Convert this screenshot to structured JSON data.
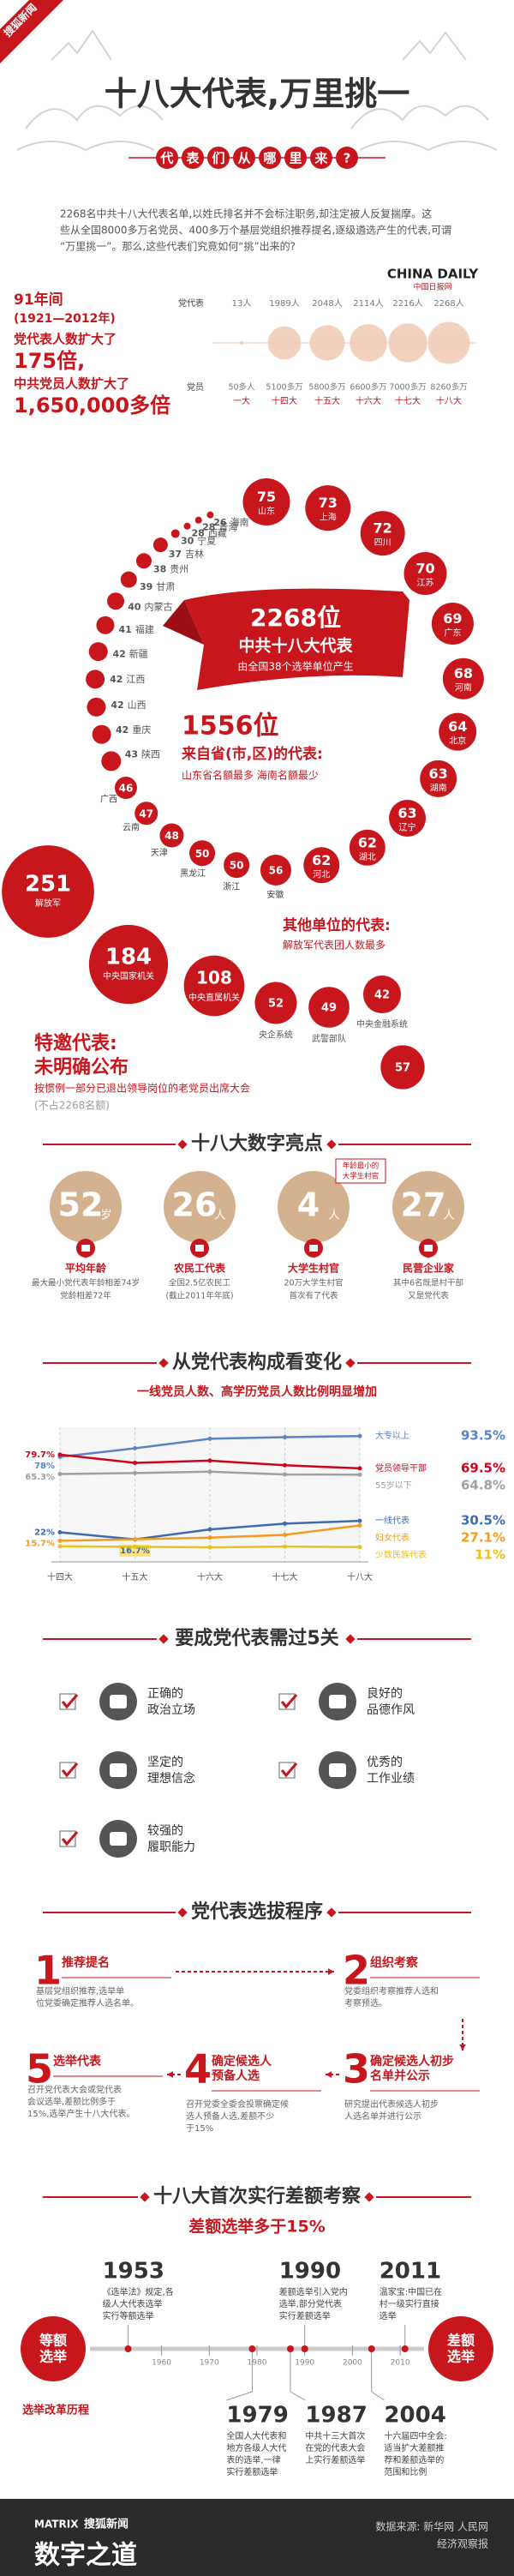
{
  "header": {
    "logo": "搜狐新闻",
    "title": "十八大代表,万里挑一",
    "subtitle_chars": [
      "代",
      "表",
      "们",
      "从",
      "哪",
      "里",
      "来",
      "?"
    ]
  },
  "intro": [
    "2268名中共十八大代表名单,以姓氏排名并不会标注职务,却注定被人反复揣摩。这",
    "些从全国8000多万名党员、400多万个基层党组织推荐提名,逐级遴选产生的代表,可谓",
    "“万里挑一”。那么,这些代表们究竟如何“挑”出来的?"
  ],
  "source_logo": {
    "name": "CHINA DAILY",
    "sub": "中国日报网"
  },
  "growth": {
    "period": "91年间",
    "years": "(1921—2012年)",
    "line1": "党代表人数扩大了",
    "delegate_factor": "175倍,",
    "line2": "中共党员人数扩大了",
    "member_factor": "1,650,000多倍"
  },
  "congress_table": {
    "delegates_label": "党代表",
    "members_label": "党员",
    "congresses": [
      "一大",
      "十四大",
      "十五大",
      "十六大",
      "十七大",
      "十八大"
    ],
    "delegates": [
      "13人",
      "1989人",
      "2048人",
      "2114人",
      "2216人",
      "2268人"
    ],
    "members": [
      {
        "value": 0.005,
        "label": "50多人"
      },
      {
        "value": 5100,
        "label": "5100多万"
      },
      {
        "value": 5800,
        "label": "5800多万"
      },
      {
        "value": 6600,
        "label": "6600多万"
      },
      {
        "value": 7000,
        "label": "7000多万"
      },
      {
        "value": 8260,
        "label": "8260多万"
      }
    ]
  },
  "provinces": [
    {
      "name": "山东",
      "value": 75
    },
    {
      "name": "上海",
      "value": 73
    },
    {
      "name": "四川",
      "value": 72
    },
    {
      "name": "江苏",
      "value": 70
    },
    {
      "name": "广东",
      "value": 69
    },
    {
      "name": "河南",
      "value": 68
    },
    {
      "name": "北京",
      "value": 64
    },
    {
      "name": "湖南",
      "value": 63
    },
    {
      "name": "辽宁",
      "value": 63
    },
    {
      "name": "湖北",
      "value": 62
    },
    {
      "name": "河北",
      "value": 62
    },
    {
      "name": "安徽",
      "value": 56
    },
    {
      "name": "浙江",
      "value": 50
    },
    {
      "name": "黑龙江",
      "value": 50
    },
    {
      "name": "天津",
      "value": 48
    },
    {
      "name": "云南",
      "value": 47
    },
    {
      "name": "广西",
      "value": 46
    },
    {
      "name": "陕西",
      "value": 43
    },
    {
      "name": "重庆",
      "value": 42
    },
    {
      "name": "山西",
      "value": 42
    },
    {
      "name": "江西",
      "value": 42
    },
    {
      "name": "新疆",
      "value": 42
    },
    {
      "name": "福建",
      "value": 41
    },
    {
      "name": "内蒙古",
      "value": 40
    },
    {
      "name": "甘肃",
      "value": 39
    },
    {
      "name": "贵州",
      "value": 38
    },
    {
      "name": "吉林",
      "value": 37
    },
    {
      "name": "宁夏",
      "value": 30
    },
    {
      "name": "西藏",
      "value": 28
    },
    {
      "name": "青海",
      "value": 28
    },
    {
      "name": "海南",
      "value": 26
    }
  ],
  "summary": {
    "total": "2268位",
    "total_desc": "中共十八大代表",
    "total_note": "由全国38个选举单位产生",
    "provincial": "1556位",
    "provincial_desc": "来自省(市,区)的代表:",
    "provincial_note": "山东省名额最多 海南名额最少",
    "others_title": "其他单位的代表:",
    "others_note": "解放军代表团人数最多"
  },
  "units": [
    {
      "name": "解放军",
      "value": 251
    },
    {
      "name": "中央国家机关",
      "value": 184
    },
    {
      "name": "中央直属机关",
      "value": 108
    },
    {
      "name": "央企系统",
      "value": 52
    },
    {
      "name": "武警部队",
      "value": 49
    },
    {
      "name": "中央金融系统",
      "value": 42
    }
  ],
  "invited": {
    "title": "特邀代表:",
    "status": "未明确公布",
    "note": "按惯例一部分已退出领导岗位的老党员出席大会",
    "excluded": "(不占2268名额)",
    "value": 57
  },
  "highlights": {
    "title": "十八大数字亮点",
    "tag": [
      "年龄最小的",
      "大学生村官"
    ],
    "items": [
      {
        "number": 52,
        "unit": "岁",
        "label": "平均年龄",
        "notes": [
          "最大最小党代表年龄相差74岁",
          "党龄相差72年"
        ]
      },
      {
        "number": 26,
        "unit": "人",
        "label": "农民工代表",
        "notes": [
          "全国2.5亿农民工",
          "(截止2011年年底)"
        ]
      },
      {
        "number": 4,
        "unit": "人",
        "label": "大学生村官",
        "notes": [
          "20万大学生村官",
          "首次有了代表"
        ]
      },
      {
        "number": 27,
        "unit": "人",
        "label": "民营企业家",
        "notes": [
          "其中6名既是村干部",
          "又是党代表"
        ]
      }
    ]
  },
  "composition": {
    "title": "从党代表构成看变化",
    "subtitle": "一线党员人数、高学历党员人数比例明显增加",
    "categories": [
      "十四大",
      "十五大",
      "十六大",
      "十七大",
      "十八大"
    ],
    "ylim": [
      0,
      100
    ],
    "series": [
      {
        "name": "大专以上",
        "color": "#5b84c4",
        "values": [
          78,
          84.4,
          91.5,
          92.7,
          93.5
        ],
        "value_labels": [
          "78%",
          null,
          null,
          null,
          "93.5%"
        ]
      },
      {
        "name": "党员领导干部",
        "color": "#d0021b",
        "values": [
          79.7,
          73.6,
          75.2,
          71.8,
          69.5
        ],
        "value_labels": [
          "79.7%",
          null,
          null,
          null,
          "69.5%"
        ]
      },
      {
        "name": "55岁以下",
        "color": "#a0a0a0",
        "values": [
          65.3,
          66,
          67,
          65,
          64.8
        ],
        "value_labels": [
          "65.3%",
          null,
          null,
          null,
          "64.8%"
        ]
      },
      {
        "name": "一线代表",
        "color": "#3d6cb0",
        "values": [
          22,
          16.7,
          24.1,
          28.4,
          30.5
        ],
        "value_labels": [
          "22%",
          "16.7%",
          null,
          null,
          "30.5%"
        ]
      },
      {
        "name": "妇女代表",
        "color": "#f29c1f",
        "values": [
          15.7,
          16.8,
          18,
          20.1,
          27.1
        ],
        "value_labels": [
          "15.7%",
          null,
          null,
          null,
          "27.1%"
        ]
      },
      {
        "name": "少数民族代表",
        "color": "#e8c21a",
        "values": [
          11.6,
          11.2,
          10.8,
          11.4,
          11
        ],
        "value_labels": [
          null,
          null,
          null,
          null,
          "11%"
        ]
      }
    ]
  },
  "criteria": {
    "title": "要成党代表需过5关",
    "items": [
      [
        "正确的",
        "政治立场"
      ],
      [
        "良好的",
        "品德作风"
      ],
      [
        "坚定的",
        "理想信念"
      ],
      [
        "优秀的",
        "工作业绩"
      ],
      [
        "较强的",
        "履职能力"
      ]
    ]
  },
  "procedure": {
    "title": "党代表选拔程序",
    "steps": [
      {
        "number": 1,
        "title_lines": [
          "推荐提名"
        ],
        "lines": [
          "基层党组织推荐,选举单",
          "位党委确定推荐人选名单。"
        ]
      },
      {
        "number": 2,
        "title_lines": [
          "组织考察"
        ],
        "lines": [
          "党委组织考察推荐人选和",
          "考察预选。"
        ]
      },
      {
        "number": 3,
        "title_lines": [
          "确定候选人初步",
          "名单并公示"
        ],
        "lines": [
          "研究提出代表候选人初步",
          "人选名单并进行公示"
        ]
      },
      {
        "number": 4,
        "title_lines": [
          "确定候选人",
          "预备人选"
        ],
        "lines": [
          "召开党委全委会投票确定候",
          "选人预备人选,差额不少",
          "于15%"
        ]
      },
      {
        "number": 5,
        "title_lines": [
          "选举代表"
        ],
        "lines": [
          "召开党代表大会或党代表",
          "会议选举,差额比例多于",
          "15%,选举产生十八大代表。"
        ]
      }
    ]
  },
  "reform": {
    "title": "十八大首次实行差额考察",
    "subtitle": "差额选举多于15%",
    "left": [
      "等额",
      "选举"
    ],
    "right": [
      "差额",
      "选举"
    ],
    "caption": "选举改革历程",
    "xlim": [
      1945,
      2015
    ],
    "xticks": [
      1960,
      1970,
      1980,
      1990,
      2000,
      2010
    ],
    "above": [
      {
        "year": 1953,
        "lines": [
          "《选举法》规定,各",
          "级人大代表选举",
          "实行等额选举"
        ]
      },
      {
        "year": 1990,
        "lines": [
          "差额选举引入党内",
          "选举,部分党代表",
          "实行差额选举"
        ]
      },
      {
        "year": 2011,
        "lines": [
          "温家宝:中国已在",
          "村一级实行直接",
          "选举"
        ]
      }
    ],
    "below": [
      {
        "year": 1979,
        "lines": [
          "全国人大代表和",
          "地方各级人大代",
          "表的选举,一律",
          "实行差额选举"
        ]
      },
      {
        "year": 1987,
        "lines": [
          "中共十三大首次",
          "在党的代表大会",
          "上实行差额选举"
        ]
      },
      {
        "year": 2004,
        "lines": [
          "十六届四中全会:",
          "适当扩大差额推",
          "荐和差额选举的",
          "范围和比例"
        ]
      }
    ]
  },
  "footer": {
    "brand": "MATRIX",
    "brand_cn": "搜狐新闻",
    "product": "数字之道",
    "source": "数据来源: 新华网 人民网",
    "source2": "经济观察报"
  }
}
